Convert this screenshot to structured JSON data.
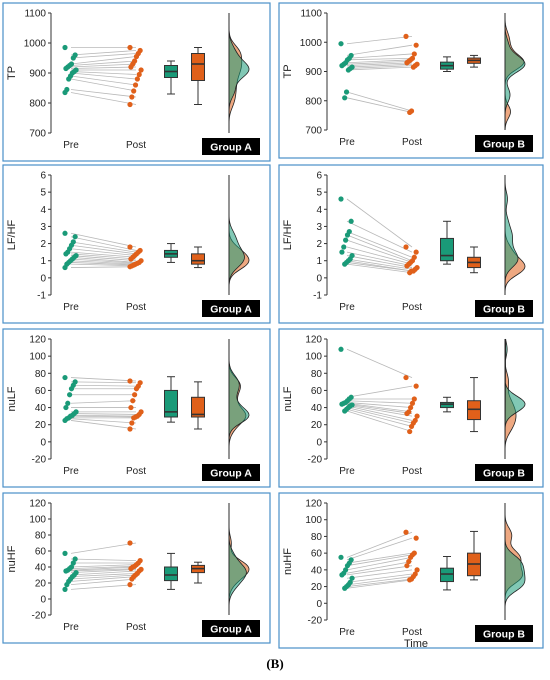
{
  "figure_label": "(B)",
  "x_axis_title": "Time",
  "colors": {
    "pre": "#1a9a78",
    "post": "#e0601a",
    "frame": "#4a90c8",
    "pair_line": "#b8b8b8",
    "box_stroke": "#333333"
  },
  "chart_data": [
    {
      "type": "raincloud",
      "group": "Group A",
      "ylabel": "TP",
      "ylim": [
        700,
        1100
      ],
      "yticks": [
        700,
        800,
        900,
        1000,
        1100
      ],
      "xcategories": [
        "Pre",
        "Post"
      ],
      "series": [
        {
          "name": "Pre",
          "values": [
            985,
            960,
            950,
            930,
            925,
            920,
            915,
            910,
            905,
            900,
            890,
            880,
            845,
            835
          ]
        },
        {
          "name": "Post",
          "values": [
            985,
            975,
            965,
            955,
            940,
            930,
            920,
            910,
            895,
            880,
            860,
            840,
            820,
            795
          ]
        }
      ],
      "boxes": [
        {
          "name": "Pre",
          "min": 830,
          "q1": 885,
          "median": 905,
          "q3": 925,
          "max": 940
        },
        {
          "name": "Post",
          "min": 795,
          "q1": 875,
          "median": 930,
          "q3": 965,
          "max": 985
        }
      ]
    },
    {
      "type": "raincloud",
      "group": "Group B",
      "ylabel": "TP",
      "ylim": [
        700,
        1100
      ],
      "yticks": [
        700,
        800,
        900,
        1000,
        1100
      ],
      "xcategories": [
        "Pre",
        "Post"
      ],
      "series": [
        {
          "name": "Pre",
          "values": [
            995,
            955,
            945,
            940,
            930,
            925,
            920,
            915,
            910,
            905,
            830,
            810
          ]
        },
        {
          "name": "Post",
          "values": [
            1020,
            990,
            960,
            945,
            940,
            935,
            930,
            925,
            920,
            915,
            765,
            760
          ]
        }
      ],
      "boxes": [
        {
          "name": "Pre",
          "min": 900,
          "q1": 908,
          "median": 920,
          "q3": 932,
          "max": 950
        },
        {
          "name": "Post",
          "min": 915,
          "q1": 928,
          "median": 938,
          "q3": 946,
          "max": 955
        }
      ]
    },
    {
      "type": "raincloud",
      "group": "Group A",
      "ylabel": "LF/HF",
      "ylim": [
        -1,
        6
      ],
      "yticks": [
        -1,
        0,
        1,
        2,
        3,
        4,
        5,
        6
      ],
      "xcategories": [
        "Pre",
        "Post"
      ],
      "series": [
        {
          "name": "Pre",
          "values": [
            2.6,
            2.4,
            2.1,
            1.9,
            1.7,
            1.5,
            1.4,
            1.3,
            1.2,
            1.1,
            1.0,
            0.9,
            0.8,
            0.6
          ]
        },
        {
          "name": "Post",
          "values": [
            1.8,
            1.6,
            1.5,
            1.4,
            1.3,
            1.2,
            1.1,
            1.0,
            0.9,
            0.85,
            0.8,
            0.75,
            0.7,
            0.65
          ]
        }
      ],
      "boxes": [
        {
          "name": "Pre",
          "min": 0.9,
          "q1": 1.2,
          "median": 1.4,
          "q3": 1.6,
          "max": 2.0
        },
        {
          "name": "Post",
          "min": 0.6,
          "q1": 0.8,
          "median": 1.0,
          "q3": 1.4,
          "max": 1.8
        }
      ]
    },
    {
      "type": "raincloud",
      "group": "Group B",
      "ylabel": "LF/HF",
      "ylim": [
        -1,
        6
      ],
      "yticks": [
        -1,
        0,
        1,
        2,
        3,
        4,
        5,
        6
      ],
      "xcategories": [
        "Pre",
        "Post"
      ],
      "series": [
        {
          "name": "Pre",
          "values": [
            4.6,
            3.3,
            2.7,
            2.5,
            2.2,
            1.8,
            1.5,
            1.3,
            1.1,
            1.0,
            0.9,
            0.8
          ]
        },
        {
          "name": "Post",
          "values": [
            1.8,
            1.5,
            1.2,
            1.0,
            0.9,
            0.8,
            0.7,
            0.6,
            0.5,
            0.4,
            0.4,
            0.3
          ]
        }
      ],
      "boxes": [
        {
          "name": "Pre",
          "min": 0.8,
          "q1": 1.0,
          "median": 1.3,
          "q3": 2.3,
          "max": 3.3
        },
        {
          "name": "Post",
          "min": 0.3,
          "q1": 0.6,
          "median": 0.9,
          "q3": 1.2,
          "max": 1.8
        }
      ]
    },
    {
      "type": "raincloud",
      "group": "Group A",
      "ylabel": "nuLF",
      "ylim": [
        -20,
        120
      ],
      "yticks": [
        -20,
        0,
        20,
        40,
        60,
        80,
        100,
        120
      ],
      "xcategories": [
        "Pre",
        "Post"
      ],
      "series": [
        {
          "name": "Pre",
          "values": [
            75,
            70,
            66,
            62,
            55,
            45,
            40,
            35,
            33,
            31,
            30,
            28,
            27,
            25
          ]
        },
        {
          "name": "Post",
          "values": [
            71,
            69,
            65,
            62,
            55,
            48,
            40,
            35,
            32,
            30,
            29,
            28,
            22,
            15
          ]
        }
      ],
      "boxes": [
        {
          "name": "Pre",
          "min": 23,
          "q1": 29,
          "median": 35,
          "q3": 60,
          "max": 76
        },
        {
          "name": "Post",
          "min": 15,
          "q1": 29,
          "median": 32,
          "q3": 52,
          "max": 70
        }
      ]
    },
    {
      "type": "raincloud",
      "group": "Group B",
      "ylabel": "nuLF",
      "ylim": [
        -20,
        120
      ],
      "yticks": [
        -20,
        0,
        20,
        40,
        60,
        80,
        100,
        120
      ],
      "xcategories": [
        "Pre",
        "Post"
      ],
      "series": [
        {
          "name": "Pre",
          "values": [
            108,
            52,
            50,
            48,
            46,
            45,
            44,
            43,
            42,
            40,
            38,
            36
          ]
        },
        {
          "name": "Post",
          "values": [
            75,
            65,
            50,
            45,
            40,
            35,
            33,
            30,
            25,
            22,
            18,
            12
          ]
        }
      ],
      "boxes": [
        {
          "name": "Pre",
          "min": 35,
          "q1": 40,
          "median": 44,
          "q3": 46,
          "max": 52
        },
        {
          "name": "Post",
          "min": 12,
          "q1": 26,
          "median": 38,
          "q3": 48,
          "max": 75
        }
      ]
    },
    {
      "type": "raincloud",
      "group": "Group A",
      "ylabel": "nuHF",
      "ylim": [
        -20,
        120
      ],
      "yticks": [
        -20,
        0,
        20,
        40,
        60,
        80,
        100,
        120
      ],
      "xcategories": [
        "Pre",
        "Post"
      ],
      "series": [
        {
          "name": "Pre",
          "values": [
            57,
            50,
            45,
            40,
            38,
            36,
            35,
            33,
            30,
            28,
            25,
            22,
            18,
            12
          ]
        },
        {
          "name": "Post",
          "values": [
            70,
            48,
            45,
            43,
            41,
            40,
            38,
            37,
            35,
            32,
            30,
            28,
            25,
            18
          ]
        }
      ],
      "boxes": [
        {
          "name": "Pre",
          "min": 12,
          "q1": 23,
          "median": 30,
          "q3": 40,
          "max": 57
        },
        {
          "name": "Post",
          "min": 20,
          "q1": 33,
          "median": 38,
          "q3": 42,
          "max": 46
        }
      ]
    },
    {
      "type": "raincloud",
      "group": "Group B",
      "ylabel": "nuHF",
      "ylim": [
        -20,
        120
      ],
      "yticks": [
        -20,
        0,
        20,
        40,
        60,
        80,
        100,
        120
      ],
      "xcategories": [
        "Pre",
        "Post"
      ],
      "series": [
        {
          "name": "Pre",
          "values": [
            55,
            52,
            48,
            45,
            40,
            36,
            34,
            30,
            25,
            22,
            20,
            18
          ]
        },
        {
          "name": "Post",
          "values": [
            85,
            78,
            60,
            58,
            55,
            50,
            45,
            40,
            35,
            32,
            29,
            28
          ]
        }
      ],
      "boxes": [
        {
          "name": "Pre",
          "min": 16,
          "q1": 26,
          "median": 35,
          "q3": 42,
          "max": 56
        },
        {
          "name": "Post",
          "min": 28,
          "q1": 33,
          "median": 47,
          "q3": 60,
          "max": 86
        }
      ]
    }
  ]
}
